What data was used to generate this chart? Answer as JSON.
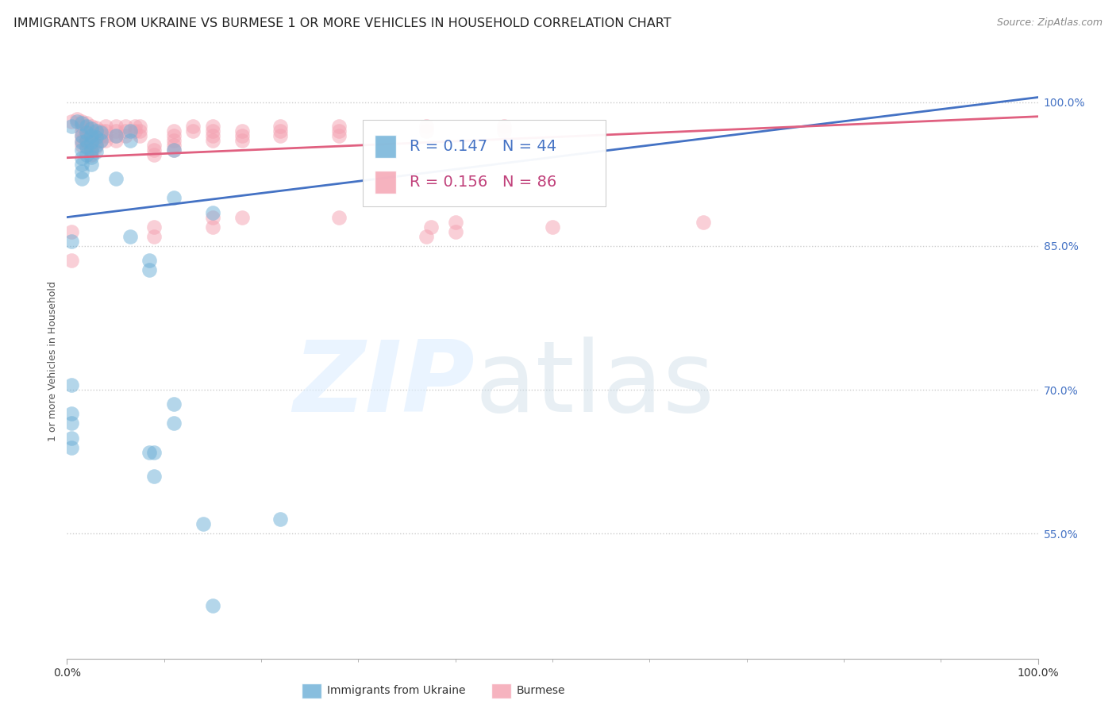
{
  "title": "IMMIGRANTS FROM UKRAINE VS BURMESE 1 OR MORE VEHICLES IN HOUSEHOLD CORRELATION CHART",
  "source": "Source: ZipAtlas.com",
  "ylabel": "1 or more Vehicles in Household",
  "legend_ukraine": {
    "label": "Immigrants from Ukraine",
    "R": 0.147,
    "N": 44,
    "color": "#6baed6"
  },
  "legend_burmese": {
    "label": "Burmese",
    "R": 0.156,
    "N": 86,
    "color": "#f4a0b0"
  },
  "ukraine_color": "#6baed6",
  "burmese_color": "#f4a0b0",
  "ukraine_line_color": "#4472c4",
  "burmese_line_color": "#e06080",
  "ukraine_scatter": [
    [
      0.5,
      97.5
    ],
    [
      1.0,
      98.0
    ],
    [
      1.5,
      97.8
    ],
    [
      1.5,
      96.5
    ],
    [
      1.5,
      95.8
    ],
    [
      1.5,
      95.0
    ],
    [
      1.5,
      94.2
    ],
    [
      1.5,
      93.5
    ],
    [
      1.5,
      92.8
    ],
    [
      1.5,
      92.0
    ],
    [
      2.0,
      97.5
    ],
    [
      2.0,
      96.8
    ],
    [
      2.0,
      96.0
    ],
    [
      2.0,
      95.3
    ],
    [
      2.0,
      94.5
    ],
    [
      2.5,
      97.2
    ],
    [
      2.5,
      96.5
    ],
    [
      2.5,
      95.8
    ],
    [
      2.5,
      95.0
    ],
    [
      2.5,
      94.3
    ],
    [
      2.5,
      93.5
    ],
    [
      3.0,
      97.0
    ],
    [
      3.0,
      96.3
    ],
    [
      3.0,
      95.5
    ],
    [
      3.0,
      94.8
    ],
    [
      3.5,
      96.8
    ],
    [
      3.5,
      96.0
    ],
    [
      5.0,
      96.5
    ],
    [
      5.0,
      92.0
    ],
    [
      6.5,
      97.0
    ],
    [
      6.5,
      96.0
    ],
    [
      6.5,
      86.0
    ],
    [
      8.5,
      83.5
    ],
    [
      8.5,
      82.5
    ],
    [
      8.5,
      63.5
    ],
    [
      11.0,
      95.0
    ],
    [
      11.0,
      90.0
    ],
    [
      11.0,
      68.5
    ],
    [
      11.0,
      66.5
    ],
    [
      15.0,
      88.5
    ],
    [
      0.5,
      85.5
    ],
    [
      0.5,
      70.5
    ],
    [
      0.5,
      67.5
    ],
    [
      0.5,
      66.5
    ]
  ],
  "ukraine_scatter_low": [
    [
      0.5,
      65.0
    ],
    [
      0.5,
      64.0
    ],
    [
      22.0,
      56.5
    ],
    [
      14.0,
      56.0
    ],
    [
      9.0,
      63.5
    ],
    [
      9.0,
      61.0
    ],
    [
      15.0,
      47.5
    ]
  ],
  "burmese_scatter": [
    [
      0.5,
      98.0
    ],
    [
      1.0,
      98.2
    ],
    [
      1.5,
      98.0
    ],
    [
      1.5,
      97.5
    ],
    [
      1.5,
      97.0
    ],
    [
      1.5,
      96.5
    ],
    [
      1.5,
      96.0
    ],
    [
      1.5,
      95.5
    ],
    [
      2.0,
      97.8
    ],
    [
      2.0,
      97.3
    ],
    [
      2.0,
      96.8
    ],
    [
      2.0,
      96.3
    ],
    [
      2.0,
      95.8
    ],
    [
      2.0,
      95.3
    ],
    [
      2.5,
      97.5
    ],
    [
      2.5,
      97.0
    ],
    [
      2.5,
      96.5
    ],
    [
      2.5,
      96.0
    ],
    [
      2.5,
      95.5
    ],
    [
      2.5,
      95.0
    ],
    [
      2.5,
      94.5
    ],
    [
      3.0,
      97.3
    ],
    [
      3.0,
      96.8
    ],
    [
      3.0,
      96.3
    ],
    [
      3.0,
      95.8
    ],
    [
      3.0,
      95.3
    ],
    [
      3.5,
      97.0
    ],
    [
      3.5,
      96.5
    ],
    [
      3.5,
      96.0
    ],
    [
      4.0,
      97.5
    ],
    [
      4.0,
      97.0
    ],
    [
      4.0,
      96.5
    ],
    [
      4.0,
      96.0
    ],
    [
      5.0,
      97.5
    ],
    [
      5.0,
      97.0
    ],
    [
      5.0,
      96.5
    ],
    [
      5.0,
      96.0
    ],
    [
      6.0,
      97.5
    ],
    [
      6.0,
      97.0
    ],
    [
      6.0,
      96.5
    ],
    [
      7.0,
      97.5
    ],
    [
      7.0,
      97.0
    ],
    [
      7.5,
      97.5
    ],
    [
      7.5,
      97.0
    ],
    [
      7.5,
      96.5
    ],
    [
      9.0,
      95.5
    ],
    [
      9.0,
      95.0
    ],
    [
      9.0,
      94.5
    ],
    [
      11.0,
      97.0
    ],
    [
      11.0,
      96.5
    ],
    [
      11.0,
      96.0
    ],
    [
      11.0,
      95.5
    ],
    [
      11.0,
      95.0
    ],
    [
      13.0,
      97.5
    ],
    [
      13.0,
      97.0
    ],
    [
      15.0,
      97.5
    ],
    [
      15.0,
      97.0
    ],
    [
      15.0,
      96.5
    ],
    [
      15.0,
      96.0
    ],
    [
      18.0,
      97.0
    ],
    [
      18.0,
      96.5
    ],
    [
      18.0,
      96.0
    ],
    [
      22.0,
      97.5
    ],
    [
      22.0,
      97.0
    ],
    [
      22.0,
      96.5
    ],
    [
      28.0,
      97.5
    ],
    [
      28.0,
      97.0
    ],
    [
      28.0,
      96.5
    ],
    [
      37.0,
      97.5
    ],
    [
      37.0,
      97.0
    ],
    [
      45.0,
      97.5
    ],
    [
      45.0,
      97.0
    ],
    [
      0.5,
      86.5
    ],
    [
      0.5,
      83.5
    ],
    [
      9.0,
      87.0
    ],
    [
      9.0,
      86.0
    ],
    [
      15.0,
      88.0
    ],
    [
      15.0,
      87.0
    ],
    [
      18.0,
      88.0
    ],
    [
      28.0,
      88.0
    ],
    [
      37.0,
      86.0
    ],
    [
      40.0,
      87.5
    ],
    [
      40.0,
      86.5
    ],
    [
      37.5,
      87.0
    ],
    [
      50.0,
      87.0
    ],
    [
      65.5,
      87.5
    ]
  ],
  "ukraine_line": {
    "x0": 0.0,
    "y0": 88.0,
    "x1": 100.0,
    "y1": 100.5
  },
  "burmese_line": {
    "x0": 0.0,
    "y0": 94.2,
    "x1": 100.0,
    "y1": 98.5
  },
  "xmin": 0.0,
  "xmax": 100.0,
  "ymin": 42.0,
  "ymax": 104.0,
  "yticks": [
    100.0,
    85.0,
    70.0,
    55.0
  ],
  "ytick_labels": [
    "100.0%",
    "85.0%",
    "70.0%",
    "55.0%"
  ],
  "xtick_positions": [
    0.0,
    100.0
  ],
  "xtick_labels": [
    "0.0%",
    "100.0%"
  ],
  "background_color": "#ffffff",
  "grid_color": "#cccccc",
  "title_fontsize": 11.5,
  "axis_label_fontsize": 9,
  "tick_fontsize": 10,
  "source_fontsize": 9
}
